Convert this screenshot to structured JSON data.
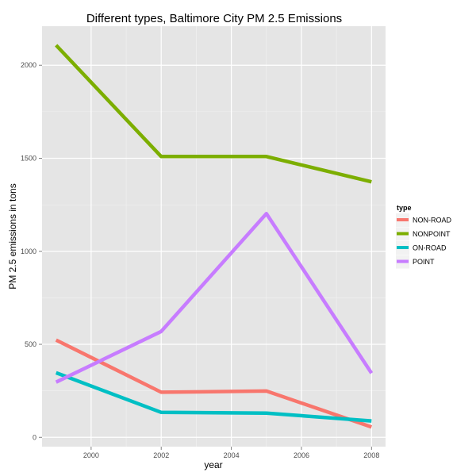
{
  "chart_data": {
    "type": "line",
    "title": "Different types, Baltimore City PM 2.5 Emissions",
    "xlabel": "year",
    "ylabel": "PM 2.5 emissions in tons",
    "x": [
      1999,
      2002,
      2005,
      2008
    ],
    "xlim": [
      1998.6,
      2008.4
    ],
    "ylim": [
      -50,
      2210
    ],
    "x_ticks": [
      2000,
      2002,
      2004,
      2006,
      2008
    ],
    "y_ticks": [
      0,
      500,
      1000,
      1500,
      2000
    ],
    "grid": true,
    "legend": {
      "title": "type",
      "placement": "right"
    },
    "series": [
      {
        "name": "NON-ROAD",
        "color": "#f8766d",
        "values": [
          522.94,
          242.66,
          248.93,
          55.82
        ]
      },
      {
        "name": "NONPOINT",
        "color": "#7cae00",
        "values": [
          2107.63,
          1509.5,
          1509.5,
          1373.21
        ]
      },
      {
        "name": "ON-ROAD",
        "color": "#00bfc4",
        "values": [
          346.82,
          134.31,
          130.43,
          88.28
        ]
      },
      {
        "name": "POINT",
        "color": "#c77cff",
        "values": [
          296.8,
          569.26,
          1202.49,
          344.98
        ]
      }
    ]
  }
}
